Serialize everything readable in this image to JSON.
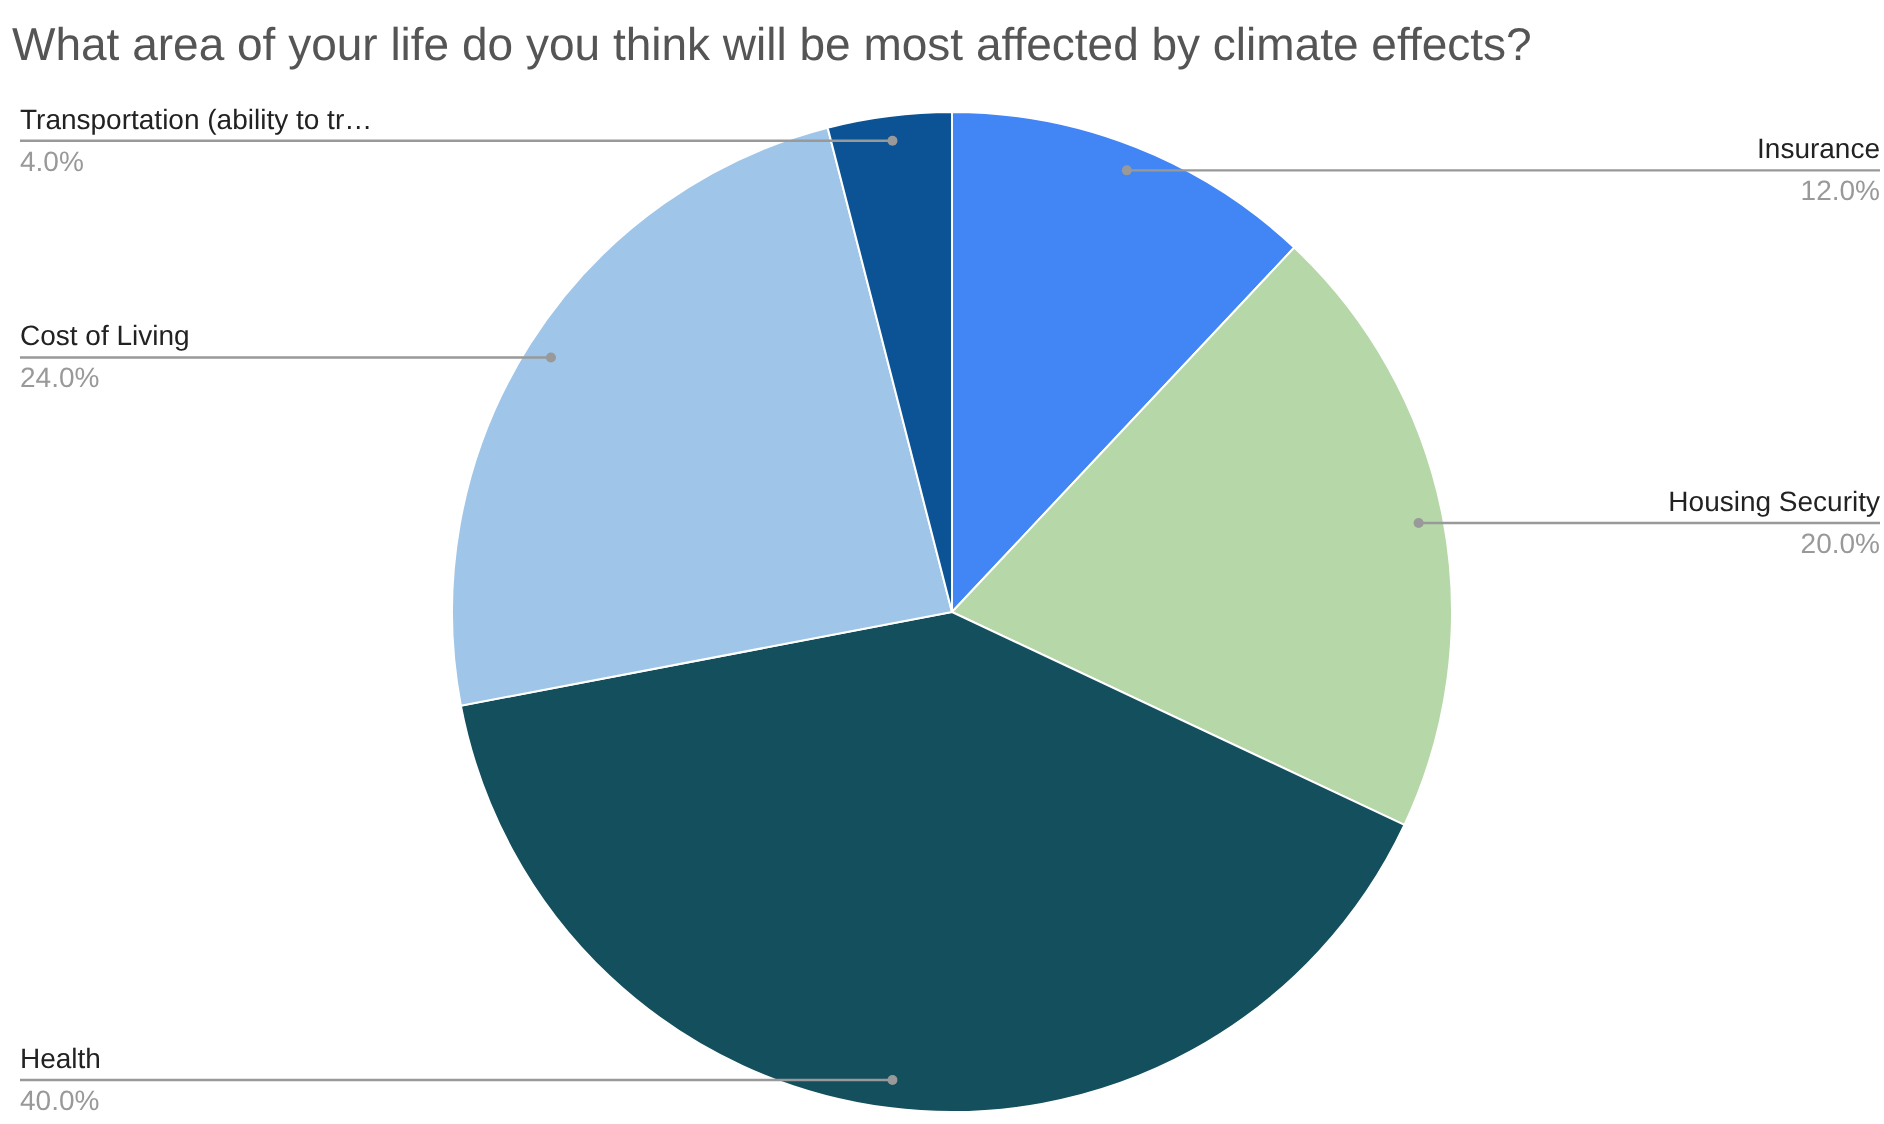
{
  "chart_data": {
    "type": "pie",
    "title": "What area of your life do you think will be most affected by climate effects?",
    "categories": [
      "Insurance",
      "Housing Security",
      "Health",
      "Cost of Living",
      "Transportation (ability to tr…"
    ],
    "values": [
      12,
      20,
      40,
      24,
      4
    ],
    "value_labels": [
      "12.0%",
      "20.0%",
      "40.0%",
      "24.0%",
      "4.0%"
    ],
    "colors": [
      "#4285f4",
      "#b6d7a8",
      "#134f5c",
      "#9fc5e8",
      "#0b5394"
    ]
  }
}
